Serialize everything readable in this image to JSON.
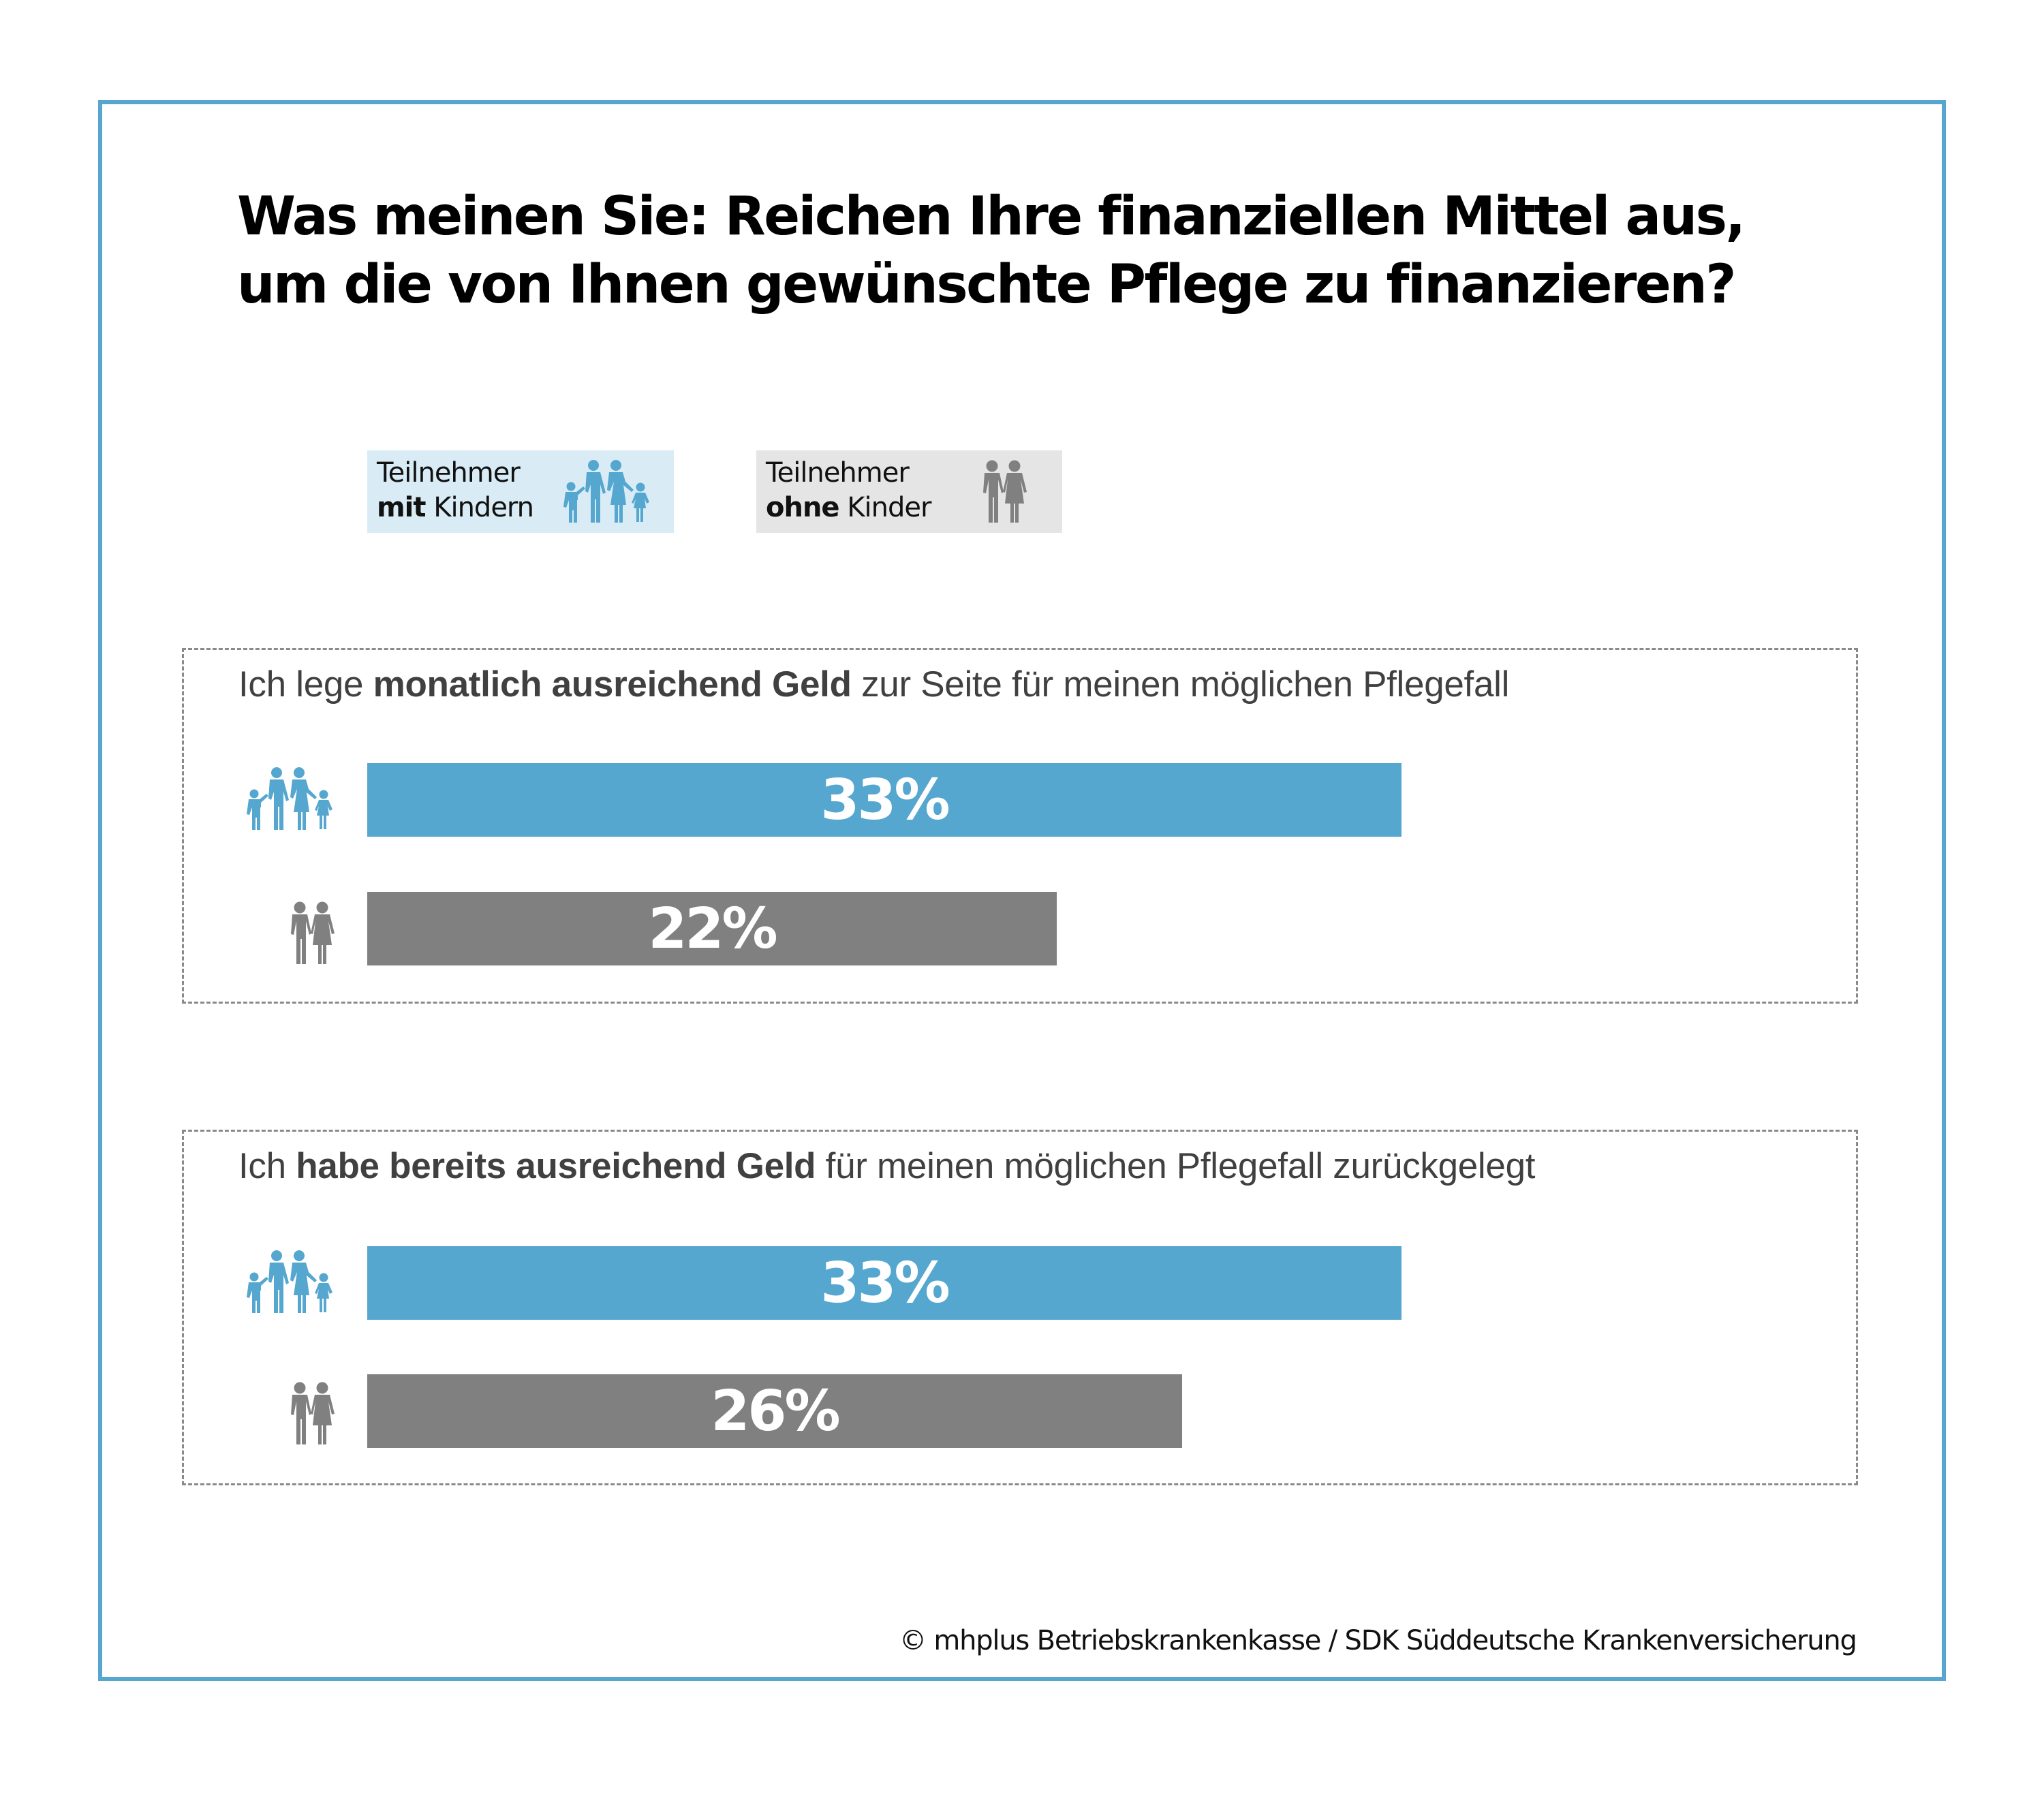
{
  "title": {
    "line1": "Was meinen Sie: Reichen Ihre finanziellen Mittel aus,",
    "line2": "um die von Ihnen gewünschte Pflege zu finanzieren?"
  },
  "legend": [
    {
      "line1": "Teilnehmer",
      "bold": "mit",
      "rest": " Kindern",
      "icon": "family-icon",
      "background": "#d9ecf6",
      "icon_color": "#55a7cf"
    },
    {
      "line1": "Teilnehmer",
      "bold": "ohne",
      "rest": " Kinder",
      "icon": "couple-icon",
      "background": "#e5e5e5",
      "icon_color": "#808080"
    }
  ],
  "colors": {
    "with_children": "#55a7cf",
    "without_children": "#808080",
    "frame": "#56a6cf",
    "question_text": "#404040"
  },
  "chart_data": {
    "type": "bar",
    "orientation": "horizontal",
    "title": "Was meinen Sie: Reichen Ihre finanziellen Mittel aus, um die von Ihnen gewünschte Pflege zu finanzieren?",
    "unit": "%",
    "series_names": [
      "Teilnehmer mit Kindern",
      "Teilnehmer ohne Kinder"
    ],
    "groups": [
      {
        "question_pre": "Ich lege ",
        "question_bold": "monatlich ausreichend Geld",
        "question_post": " zur Seite für meinen möglichen Pflegefall",
        "values": [
          33,
          22
        ],
        "labels": [
          "33%",
          "22%"
        ]
      },
      {
        "question_pre": "Ich ",
        "question_bold": "habe bereits ausreichend Geld",
        "question_post": " für meinen möglichen Pflegefall zurückgelegt",
        "values": [
          33,
          26
        ],
        "labels": [
          "33%",
          "26%"
        ]
      }
    ],
    "xlim": [
      0,
      100
    ],
    "grid": false,
    "legend_position": "top-left"
  },
  "footer": "© mhplus Betriebskrankenkasse / SDK Süddeutsche Krankenversicherung"
}
